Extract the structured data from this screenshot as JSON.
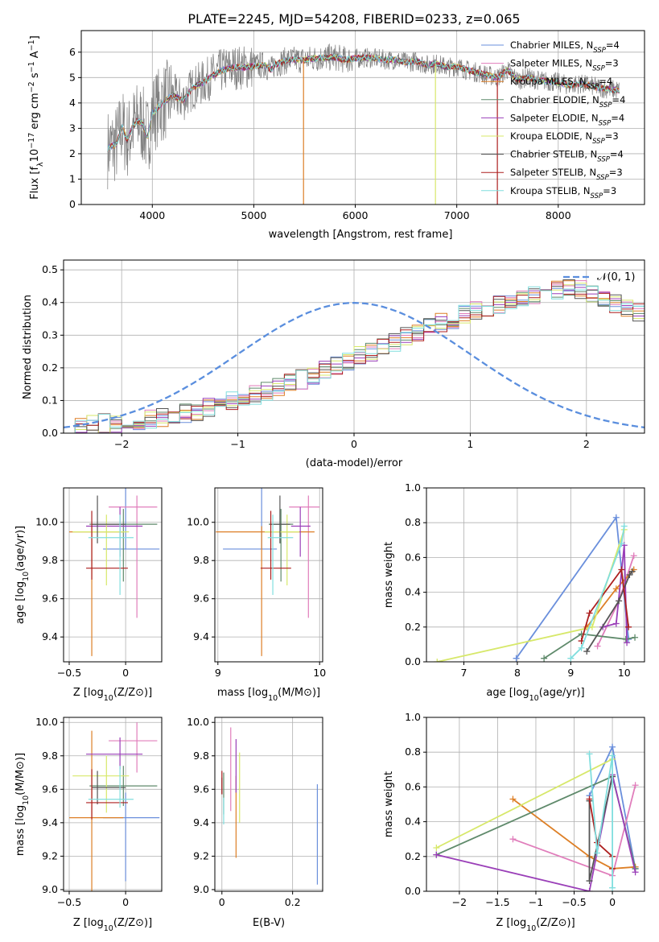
{
  "figure_title": "PLATE=2245, MJD=54208, FIBERID=0233, z=0.065",
  "model_colors": [
    "#6a8fdc",
    "#e07dbb",
    "#dd7f26",
    "#5f8a6b",
    "#9a3fb8",
    "#d7e86a",
    "#555555",
    "#ad1f1f",
    "#80dede"
  ],
  "model_names": [
    "Chabrier MILES",
    "Salpeter MILES",
    "Kroupa MILES",
    "Chabrier ELODIE",
    "Salpeter ELODIE",
    "Kroupa ELODIE",
    "Chabrier STELIB",
    "Salpeter STELIB",
    "Kroupa STELIB"
  ],
  "nssp_sub": "SSP",
  "nssp_values": [
    4,
    3,
    4,
    4,
    4,
    3,
    4,
    3,
    3
  ],
  "chart_data": [
    {
      "id": "spectrum",
      "type": "line",
      "xlabel": "wavelength [Angstrom, rest frame]",
      "ylabel_parts": [
        "Flux [f",
        "λ",
        "10",
        "−17",
        " erg cm",
        "−2",
        " s",
        "−1",
        " A",
        "−1",
        "]"
      ],
      "xlim": [
        3300,
        8850
      ],
      "ylim": [
        0,
        6.85
      ],
      "xticks": [
        4000,
        5000,
        6000,
        7000,
        8000
      ],
      "yticks": [
        0,
        1,
        2,
        3,
        4,
        5,
        6
      ],
      "data_color": "#7f7f7f",
      "continuum": [
        [
          3560,
          2.2
        ],
        [
          3650,
          2.4
        ],
        [
          3700,
          3.1
        ],
        [
          3750,
          2.5
        ],
        [
          3800,
          3.0
        ],
        [
          3850,
          3.3
        ],
        [
          3900,
          3.2
        ],
        [
          3950,
          2.6
        ],
        [
          4000,
          3.6
        ],
        [
          4100,
          4.0
        ],
        [
          4200,
          4.3
        ],
        [
          4300,
          4.1
        ],
        [
          4400,
          4.6
        ],
        [
          4500,
          4.8
        ],
        [
          4600,
          5.1
        ],
        [
          4700,
          5.3
        ],
        [
          4800,
          5.4
        ],
        [
          4900,
          5.4
        ],
        [
          5000,
          5.45
        ],
        [
          5100,
          5.5
        ],
        [
          5175,
          5.3
        ],
        [
          5200,
          5.5
        ],
        [
          5300,
          5.65
        ],
        [
          5400,
          5.7
        ],
        [
          5500,
          5.7
        ],
        [
          5600,
          5.75
        ],
        [
          5700,
          5.78
        ],
        [
          5800,
          5.8
        ],
        [
          5900,
          5.7
        ],
        [
          6000,
          5.75
        ],
        [
          6100,
          5.78
        ],
        [
          6200,
          5.75
        ],
        [
          6300,
          5.7
        ],
        [
          6400,
          5.7
        ],
        [
          6500,
          5.6
        ],
        [
          6600,
          5.65
        ],
        [
          6700,
          5.5
        ],
        [
          6800,
          5.55
        ],
        [
          6900,
          5.4
        ],
        [
          7000,
          5.45
        ],
        [
          7100,
          5.3
        ],
        [
          7200,
          5.2
        ],
        [
          7300,
          5.1
        ],
        [
          7400,
          5.0
        ],
        [
          7500,
          5.3
        ],
        [
          7600,
          4.9
        ],
        [
          7700,
          5.0
        ],
        [
          7800,
          4.9
        ],
        [
          7900,
          4.85
        ],
        [
          8000,
          4.8
        ],
        [
          8100,
          4.7
        ],
        [
          8200,
          4.75
        ],
        [
          8300,
          4.7
        ],
        [
          8400,
          4.6
        ],
        [
          8500,
          4.55
        ],
        [
          8600,
          4.5
        ]
      ]
    },
    {
      "id": "residuals",
      "type": "histogram",
      "xlabel": "(data-model)/error",
      "ylabel": "Normed distribution",
      "xlim": [
        -2.5,
        2.5
      ],
      "ylim": [
        0,
        0.53
      ],
      "xticks": [
        -2,
        -1,
        0,
        1,
        2
      ],
      "yticks": [
        0.0,
        0.1,
        0.2,
        0.3,
        0.4,
        0.5
      ],
      "bin_width": 0.1,
      "bin_start": -2.5,
      "legend_label": "𝒩(0, 1)",
      "base_counts": [
        0.02,
        0.022,
        0.025,
        0.03,
        0.032,
        0.036,
        0.04,
        0.045,
        0.05,
        0.055,
        0.06,
        0.068,
        0.078,
        0.088,
        0.097,
        0.107,
        0.117,
        0.128,
        0.14,
        0.152,
        0.165,
        0.178,
        0.192,
        0.206,
        0.22,
        0.235,
        0.25,
        0.265,
        0.28,
        0.295,
        0.31,
        0.325,
        0.338,
        0.35,
        0.362,
        0.373,
        0.383,
        0.392,
        0.4,
        0.41,
        0.42,
        0.43,
        0.44,
        0.445,
        0.44,
        0.43,
        0.41,
        0.395,
        0.38,
        0.37,
        0.365,
        0.36,
        0.355,
        0.348,
        0.34,
        0.33,
        0.318,
        0.305,
        0.29,
        0.275,
        0.26,
        0.245,
        0.23,
        0.215,
        0.2,
        0.185,
        0.17,
        0.155,
        0.14,
        0.125,
        0.11,
        0.098,
        0.088,
        0.078,
        0.068,
        0.06,
        0.052,
        0.046,
        0.04,
        0.035,
        0.031,
        0.028,
        0.025,
        0.023,
        0.021,
        0.02,
        0.019,
        0.018,
        0.017,
        0.016,
        0.015,
        0.014,
        0.013,
        0.012,
        0.011,
        0.01,
        0.01,
        0.01,
        0.01,
        0.01
      ]
    },
    {
      "id": "age_vs_Z",
      "type": "scatter",
      "xlabel_parts": [
        "Z [log",
        "10",
        "(Z/Z",
        "⊙",
        ")]"
      ],
      "ylabel_parts": [
        "age  [log",
        "10",
        "(age/yr)]"
      ],
      "xlim": [
        -0.55,
        0.32
      ],
      "ylim": [
        9.27,
        10.18
      ],
      "xticks": [
        -0.5,
        0.0
      ],
      "yticks": [
        9.4,
        9.6,
        9.8,
        10.0
      ],
      "points": [
        [
          0.0,
          9.86,
          -0.2,
          0.3,
          0.0,
          0.5
        ],
        [
          0.1,
          10.08,
          -0.25,
          0.18,
          0.58,
          0.06
        ],
        [
          -0.3,
          9.95,
          -0.2,
          0.28,
          0.65,
          0.03
        ],
        [
          -0.02,
          9.99,
          -0.3,
          0.3,
          0.3,
          0.08
        ],
        [
          -0.05,
          9.98,
          -0.3,
          0.2,
          0.16,
          0.1
        ],
        [
          -0.17,
          9.95,
          -0.3,
          0.2,
          0.28,
          0.09
        ],
        [
          -0.25,
          9.99,
          -0.05,
          0.25,
          0.1,
          0.15
        ],
        [
          -0.3,
          9.76,
          -0.05,
          0.32,
          0.06,
          0.3
        ],
        [
          -0.05,
          9.92,
          -0.28,
          0.12,
          0.3,
          0.12
        ]
      ]
    },
    {
      "id": "age_vs_mass",
      "type": "scatter",
      "xlabel_parts": [
        "mass [log",
        "10",
        "(M/M",
        "⊙",
        ")]"
      ],
      "ylabel": "",
      "xlim": [
        8.97,
        10.03
      ],
      "ylim": [
        9.27,
        10.18
      ],
      "xticks": [
        9,
        10
      ],
      "yticks": [
        9.4,
        9.6,
        9.8,
        10.0
      ],
      "points": [
        [
          9.43,
          9.86,
          -0.38,
          0.15,
          0.0,
          0.5
        ],
        [
          9.89,
          10.08,
          -0.19,
          0.11,
          0.58,
          0.06
        ],
        [
          9.43,
          9.95,
          -0.45,
          0.52,
          0.65,
          0.03
        ],
        [
          9.62,
          9.99,
          -0.12,
          0.12,
          0.3,
          0.08
        ],
        [
          9.81,
          9.98,
          -0.09,
          0.1,
          0.16,
          0.1
        ],
        [
          9.68,
          9.95,
          -0.22,
          0.12,
          0.28,
          0.09
        ],
        [
          9.61,
          9.99,
          -0.1,
          0.1,
          0.1,
          0.15
        ],
        [
          9.52,
          9.76,
          -0.1,
          0.2,
          0.06,
          0.3
        ],
        [
          9.54,
          9.92,
          -0.05,
          0.2,
          0.3,
          0.12
        ]
      ]
    },
    {
      "id": "weight_vs_age",
      "type": "line",
      "xlabel_parts": [
        "age  [log",
        "10",
        "(age/yr)]"
      ],
      "ylabel": "mass weight",
      "xlim": [
        6.3,
        10.38
      ],
      "ylim": [
        0.0,
        1.0
      ],
      "xticks": [
        7,
        8,
        9,
        10
      ],
      "yticks": [
        0.0,
        0.2,
        0.4,
        0.6,
        0.8,
        1.0
      ],
      "grid": true,
      "series": [
        [
          [
            7.98,
            0.02
          ],
          [
            9.85,
            0.83
          ],
          [
            10.08,
            0.13
          ]
        ],
        [
          [
            9.5,
            0.09
          ],
          [
            9.9,
            0.35
          ],
          [
            10.18,
            0.61
          ]
        ],
        [
          [
            9.3,
            0.2
          ],
          [
            9.85,
            0.42
          ],
          [
            10.18,
            0.53
          ]
        ],
        [
          [
            8.5,
            0.02
          ],
          [
            9.2,
            0.16
          ],
          [
            10.03,
            0.13
          ],
          [
            10.2,
            0.14
          ]
        ],
        [
          [
            9.6,
            0.2
          ],
          [
            9.85,
            0.22
          ],
          [
            10.0,
            0.67
          ],
          [
            10.05,
            0.11
          ]
        ],
        [
          [
            6.5,
            0.0
          ],
          [
            9.4,
            0.2
          ],
          [
            10.0,
            0.76
          ]
        ],
        [
          [
            9.3,
            0.06
          ],
          [
            9.9,
            0.35
          ],
          [
            10.1,
            0.5
          ],
          [
            10.15,
            0.52
          ]
        ],
        [
          [
            9.2,
            0.12
          ],
          [
            9.35,
            0.28
          ],
          [
            9.95,
            0.53
          ],
          [
            10.08,
            0.2
          ]
        ],
        [
          [
            9.0,
            0.02
          ],
          [
            9.2,
            0.08
          ],
          [
            9.95,
            0.68
          ],
          [
            10.0,
            0.78
          ]
        ]
      ]
    },
    {
      "id": "mass_vs_Z",
      "type": "scatter",
      "xlabel_parts": [
        "Z [log",
        "10",
        "(Z/Z",
        "⊙",
        ")]"
      ],
      "ylabel_parts": [
        "mass [log",
        "10",
        "(M/M",
        "⊙",
        ")]"
      ],
      "xlim": [
        -0.55,
        0.32
      ],
      "ylim": [
        8.99,
        10.03
      ],
      "xticks": [
        -0.5,
        0.0
      ],
      "yticks": [
        9.0,
        9.2,
        9.4,
        9.6,
        9.8,
        10.0
      ],
      "points": [
        [
          0.0,
          9.43,
          -0.2,
          0.3,
          0.38,
          0.15
        ],
        [
          0.1,
          9.89,
          -0.25,
          0.18,
          0.19,
          0.11
        ],
        [
          -0.3,
          9.43,
          -0.2,
          0.28,
          0.45,
          0.52
        ],
        [
          -0.02,
          9.62,
          -0.3,
          0.3,
          0.12,
          0.12
        ],
        [
          -0.05,
          9.81,
          -0.3,
          0.2,
          0.09,
          0.1
        ],
        [
          -0.17,
          9.68,
          -0.3,
          0.2,
          0.22,
          0.12
        ],
        [
          -0.25,
          9.61,
          -0.05,
          0.25,
          0.1,
          0.1
        ],
        [
          -0.3,
          9.52,
          -0.05,
          0.32,
          0.1,
          0.2
        ],
        [
          -0.05,
          9.54,
          -0.28,
          0.12,
          0.05,
          0.2
        ]
      ]
    },
    {
      "id": "mass_vs_ebv",
      "type": "scatter",
      "xlabel": "E(B-V)",
      "ylabel": "",
      "xlim": [
        -0.02,
        0.285
      ],
      "ylim": [
        8.99,
        10.03
      ],
      "xticks": [
        0.0,
        0.2
      ],
      "yticks": [
        9.0,
        9.2,
        9.4,
        9.6,
        9.8,
        10.0
      ],
      "points": [
        [
          0.27,
          9.33,
          0.0,
          0.0,
          0.3,
          0.3
        ],
        [
          0.025,
          9.75,
          0.0,
          0.0,
          0.28,
          0.22
        ],
        [
          0.04,
          9.42,
          0.0,
          0.0,
          0.23,
          0.26
        ],
        [
          0.005,
          9.6,
          0.0,
          0.0,
          0.15,
          0.1
        ],
        [
          0.04,
          9.78,
          0.0,
          0.0,
          0.2,
          0.12
        ],
        [
          0.05,
          9.62,
          0.0,
          0.0,
          0.22,
          0.2
        ],
        [
          0.0,
          9.62,
          0.0,
          0.0,
          0.05,
          0.05
        ],
        [
          0.0,
          9.63,
          0.0,
          0.0,
          0.06,
          0.08
        ],
        [
          0.005,
          9.45,
          0.0,
          0.0,
          0.06,
          0.1
        ]
      ]
    },
    {
      "id": "weight_vs_Z",
      "type": "line",
      "xlabel_parts": [
        "Z [log",
        "10",
        "(Z/Z",
        "⊙",
        ")]"
      ],
      "ylabel": "mass weight",
      "xlim": [
        -2.43,
        0.42
      ],
      "ylim": [
        0.0,
        1.0
      ],
      "xticks": [
        -2.0,
        -1.5,
        -1.0,
        -0.5,
        0.0
      ],
      "yticks": [
        0.0,
        0.2,
        0.4,
        0.6,
        0.8,
        1.0
      ],
      "grid": true,
      "series": [
        [
          [
            -0.3,
            0.55
          ],
          [
            0.0,
            0.83
          ],
          [
            0.3,
            0.13
          ]
        ],
        [
          [
            -1.3,
            0.3
          ],
          [
            0.0,
            0.09
          ],
          [
            0.3,
            0.61
          ]
        ],
        [
          [
            -1.3,
            0.53
          ],
          [
            -0.3,
            0.2
          ],
          [
            0.0,
            0.13
          ],
          [
            0.3,
            0.14
          ]
        ],
        [
          [
            -2.3,
            0.21
          ],
          [
            0.0,
            0.66
          ],
          [
            0.3,
            0.13
          ]
        ],
        [
          [
            -2.3,
            0.21
          ],
          [
            -0.3,
            0.0
          ],
          [
            0.0,
            0.67
          ],
          [
            0.3,
            0.11
          ]
        ],
        [
          [
            -2.3,
            0.25
          ],
          [
            0.0,
            0.76
          ]
        ],
        [
          [
            -0.3,
            0.52
          ],
          [
            -0.3,
            0.06
          ],
          [
            0.0,
            0.66
          ]
        ],
        [
          [
            -0.3,
            0.53
          ],
          [
            -0.2,
            0.28
          ],
          [
            0.0,
            0.2
          ],
          [
            0.0,
            0.13
          ]
        ],
        [
          [
            -0.3,
            0.79
          ],
          [
            -0.2,
            0.22
          ],
          [
            0.0,
            0.78
          ],
          [
            0.0,
            0.02
          ]
        ]
      ]
    }
  ]
}
